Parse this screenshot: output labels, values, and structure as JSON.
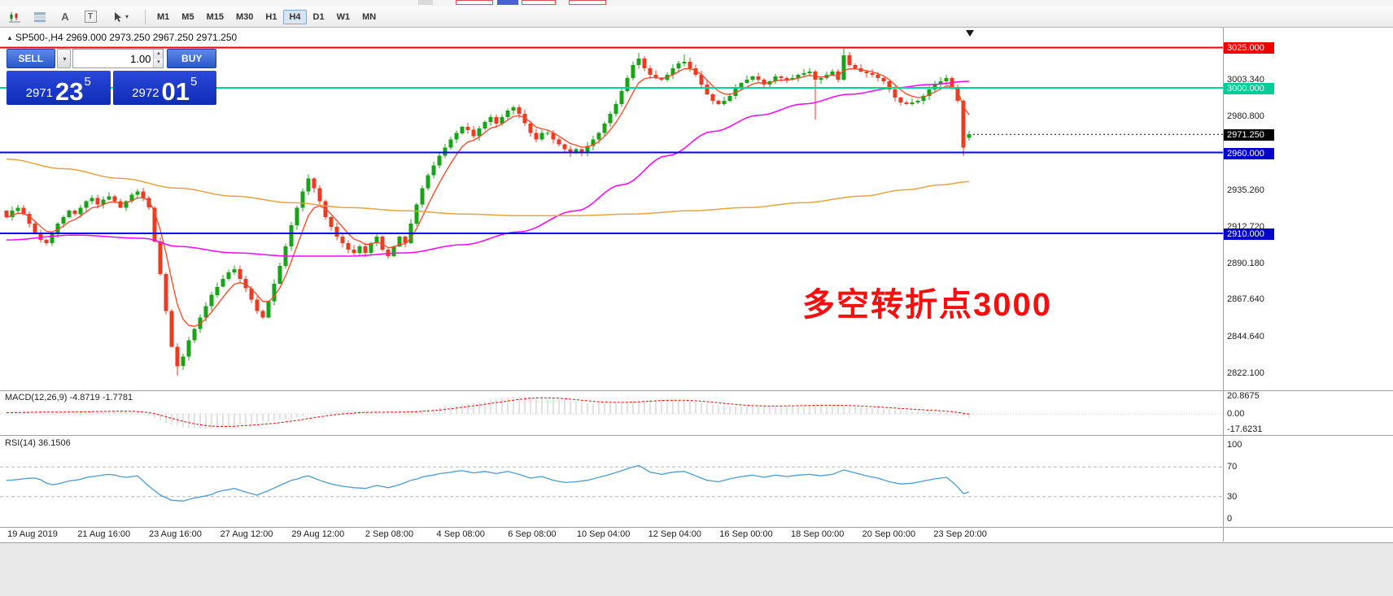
{
  "toolbar": {
    "icon_tools": [
      {
        "name": "charts-icon"
      },
      {
        "name": "tile-windows-icon"
      },
      {
        "name": "label-tool-icon",
        "glyph": "A"
      },
      {
        "name": "text-tool-icon",
        "glyph": "T"
      },
      {
        "name": "cursor-tool-icon"
      }
    ],
    "timeframes": [
      "M1",
      "M5",
      "M15",
      "M30",
      "H1",
      "H4",
      "D1",
      "W1",
      "MN"
    ],
    "active_timeframe": "H4"
  },
  "trade_panel": {
    "sell_label": "SELL",
    "buy_label": "BUY",
    "volume": "1.00",
    "bid": {
      "prefix": "2971",
      "big": "23",
      "sup": "5"
    },
    "ask": {
      "prefix": "2972",
      "big": "01",
      "sup": "5"
    }
  },
  "chart": {
    "symbol_info": "SP500-,H4 2969.000 2973.250 2967.250 2971.250",
    "annotation": "多空转折点3000"
  },
  "chart_data": {
    "type": "candlestick",
    "symbol": "SP500-",
    "timeframe": "H4",
    "ohlc": {
      "open": 2969.0,
      "high": 2973.25,
      "low": 2967.25,
      "close": 2971.25
    },
    "current_price": 2971.25,
    "x_axis": [
      "19 Aug 2019",
      "21 Aug 16:00",
      "23 Aug 16:00",
      "27 Aug 12:00",
      "29 Aug 12:00",
      "2 Sep 08:00",
      "4 Sep 08:00",
      "6 Sep 08:00",
      "10 Sep 04:00",
      "12 Sep 04:00",
      "16 Sep 00:00",
      "18 Sep 00:00",
      "20 Sep 00:00",
      "23 Sep 20:00"
    ],
    "y_axis_labels": [
      "3003.340",
      "2980.800",
      "2935.260",
      "2912.720",
      "2890.180",
      "2867.640",
      "2844.640",
      "2822.100"
    ],
    "price_badges": [
      {
        "label": "3025.000",
        "price": 3025.0,
        "bg": "#ee0000"
      },
      {
        "label": "3000.000",
        "price": 3000.0,
        "bg": "#00cc99"
      },
      {
        "label": "2971.250",
        "price": 2971.25,
        "bg": "#000000"
      },
      {
        "label": "2960.000",
        "price": 2960.0,
        "bg": "#0000cc"
      },
      {
        "label": "2910.000",
        "price": 2910.0,
        "bg": "#0000cc"
      }
    ],
    "hlines": [
      {
        "price": 3025.0,
        "color": "#ff0000"
      },
      {
        "price": 3000.0,
        "color": "#00d59a"
      },
      {
        "price": 2960.0,
        "color": "#0000ff"
      },
      {
        "price": 2910.0,
        "color": "#0000ff"
      }
    ],
    "closes": [
      2920,
      2924,
      2926,
      2922,
      2916,
      2910,
      2906,
      2904,
      2910,
      2916,
      2920,
      2924,
      2922,
      2926,
      2930,
      2932,
      2928,
      2931,
      2933,
      2930,
      2926,
      2930,
      2934,
      2936,
      2932,
      2926,
      2905,
      2885,
      2862,
      2840,
      2828,
      2834,
      2844,
      2851,
      2858,
      2865,
      2872,
      2877,
      2882,
      2886,
      2888,
      2882,
      2876,
      2869,
      2862,
      2858,
      2868,
      2879,
      2890,
      2902,
      2915,
      2926,
      2936,
      2944,
      2938,
      2930,
      2920,
      2914,
      2908,
      2904,
      2900,
      2898,
      2902,
      2898,
      2904,
      2908,
      2900,
      2896,
      2902,
      2908,
      2904,
      2916,
      2928,
      2938,
      2946,
      2952,
      2958,
      2963,
      2968,
      2972,
      2976,
      2974,
      2970,
      2975,
      2979,
      2982,
      2978,
      2982,
      2986,
      2988,
      2984,
      2978,
      2972,
      2968,
      2972,
      2972,
      2968,
      2965,
      2962,
      2960,
      2962,
      2960,
      2964,
      2968,
      2972,
      2978,
      2984,
      2990,
      2998,
      3006,
      3014,
      3018,
      3012,
      3008,
      3006,
      3005,
      3008,
      3012,
      3015,
      3016,
      3012,
      3008,
      3002,
      2996,
      2992,
      2990,
      2992,
      2995,
      3000,
      3003,
      3005,
      3007,
      3005,
      3002,
      3004,
      3007,
      3006,
      3005,
      3006,
      3008,
      3009,
      3010,
      3005,
      3006,
      3008,
      3010,
      3005,
      3020,
      3014,
      3012,
      3010,
      3009,
      3008,
      3006,
      3004,
      2999,
      2994,
      2991,
      2990,
      2991,
      2992,
      2995,
      2999,
      3002,
      3004,
      3006,
      3000,
      2992,
      2963,
      2971.25
    ],
    "wick_overrides": {
      "30": {
        "l": 2822.1
      },
      "53": {
        "h": 2946.5
      },
      "111": {
        "h": 3021.5
      },
      "119": {
        "h": 3020.5
      },
      "142": {
        "l": 2980.5
      },
      "147": {
        "h": 3025.0
      },
      "168": {
        "l": 2957.8
      },
      "169": {
        "o": 2969.0,
        "h": 2973.25,
        "l": 2967.25
      }
    },
    "ma_fast_period": 6,
    "ma_mid_anchors": [
      [
        0,
        2906
      ],
      [
        12,
        2909
      ],
      [
        24,
        2907
      ],
      [
        30,
        2902
      ],
      [
        40,
        2898
      ],
      [
        50,
        2896
      ],
      [
        60,
        2896
      ],
      [
        70,
        2898
      ],
      [
        80,
        2903
      ],
      [
        90,
        2911
      ],
      [
        100,
        2924
      ],
      [
        108,
        2940
      ],
      [
        116,
        2958
      ],
      [
        124,
        2973
      ],
      [
        132,
        2983
      ],
      [
        140,
        2990
      ],
      [
        148,
        2996
      ],
      [
        156,
        3000
      ],
      [
        162,
        3002
      ],
      [
        169,
        3004
      ]
    ],
    "ma_slow_anchors": [
      [
        0,
        2956
      ],
      [
        10,
        2950
      ],
      [
        20,
        2944
      ],
      [
        30,
        2938
      ],
      [
        40,
        2933
      ],
      [
        50,
        2929
      ],
      [
        60,
        2926
      ],
      [
        70,
        2924
      ],
      [
        80,
        2922
      ],
      [
        90,
        2921
      ],
      [
        100,
        2921
      ],
      [
        110,
        2922
      ],
      [
        120,
        2924
      ],
      [
        130,
        2926
      ],
      [
        140,
        2929
      ],
      [
        150,
        2933
      ],
      [
        158,
        2937
      ],
      [
        164,
        2940
      ],
      [
        169,
        2942
      ]
    ],
    "macd": {
      "label": "MACD(12,26,9) -4.8719 -1.7781",
      "scale": {
        "max": "20.8675",
        "zero": "0.00",
        "min": "-17.6231"
      },
      "signal_period": 9,
      "anchors": [
        [
          0,
          1.5
        ],
        [
          5,
          2.5
        ],
        [
          10,
          2
        ],
        [
          15,
          3.2
        ],
        [
          20,
          3.5
        ],
        [
          23,
          2
        ],
        [
          25,
          -2
        ],
        [
          27,
          -8
        ],
        [
          29,
          -13
        ],
        [
          32,
          -16.5
        ],
        [
          35,
          -17.6
        ],
        [
          38,
          -15
        ],
        [
          42,
          -12
        ],
        [
          46,
          -9.5
        ],
        [
          50,
          -5
        ],
        [
          54,
          0
        ],
        [
          58,
          2.5
        ],
        [
          62,
          3
        ],
        [
          66,
          2
        ],
        [
          70,
          2.5
        ],
        [
          74,
          5
        ],
        [
          78,
          9
        ],
        [
          82,
          13
        ],
        [
          86,
          17
        ],
        [
          89,
          19.5
        ],
        [
          91,
          20.9
        ],
        [
          94,
          19.5
        ],
        [
          97,
          17
        ],
        [
          100,
          14
        ],
        [
          103,
          12
        ],
        [
          106,
          12.5
        ],
        [
          109,
          14
        ],
        [
          112,
          16
        ],
        [
          115,
          17
        ],
        [
          118,
          16
        ],
        [
          121,
          14
        ],
        [
          124,
          11
        ],
        [
          127,
          9
        ],
        [
          130,
          8
        ],
        [
          133,
          8.5
        ],
        [
          136,
          9.5
        ],
        [
          139,
          10
        ],
        [
          142,
          10.5
        ],
        [
          145,
          10
        ],
        [
          148,
          9
        ],
        [
          151,
          7.5
        ],
        [
          154,
          6
        ],
        [
          157,
          4.5
        ],
        [
          160,
          3.5
        ],
        [
          163,
          2.5
        ],
        [
          165,
          1.5
        ],
        [
          167,
          -1.5
        ],
        [
          169,
          -4.87
        ]
      ]
    },
    "rsi": {
      "label": "RSI(14) 36.1506",
      "scale": [
        "100",
        "70",
        "30",
        "0"
      ],
      "levels": [
        70,
        30
      ],
      "anchors": [
        [
          0,
          52
        ],
        [
          5,
          55
        ],
        [
          8,
          46
        ],
        [
          12,
          52
        ],
        [
          15,
          57
        ],
        [
          18,
          60
        ],
        [
          21,
          56
        ],
        [
          23,
          58
        ],
        [
          25,
          44
        ],
        [
          27,
          32
        ],
        [
          29,
          25
        ],
        [
          31,
          24
        ],
        [
          33,
          28
        ],
        [
          35,
          31
        ],
        [
          38,
          38
        ],
        [
          40,
          41
        ],
        [
          42,
          36
        ],
        [
          44,
          32
        ],
        [
          46,
          38
        ],
        [
          48,
          45
        ],
        [
          50,
          52
        ],
        [
          53,
          58
        ],
        [
          55,
          52
        ],
        [
          57,
          47
        ],
        [
          59,
          44
        ],
        [
          61,
          42
        ],
        [
          63,
          41
        ],
        [
          65,
          45
        ],
        [
          67,
          42
        ],
        [
          69,
          46
        ],
        [
          71,
          52
        ],
        [
          74,
          58
        ],
        [
          77,
          62
        ],
        [
          80,
          65
        ],
        [
          82,
          62
        ],
        [
          84,
          64
        ],
        [
          86,
          61
        ],
        [
          88,
          64
        ],
        [
          90,
          60
        ],
        [
          92,
          55
        ],
        [
          94,
          57
        ],
        [
          96,
          52
        ],
        [
          98,
          49
        ],
        [
          100,
          50
        ],
        [
          102,
          52
        ],
        [
          104,
          56
        ],
        [
          106,
          60
        ],
        [
          108,
          65
        ],
        [
          110,
          70
        ],
        [
          111,
          72
        ],
        [
          113,
          63
        ],
        [
          115,
          60
        ],
        [
          117,
          63
        ],
        [
          119,
          64
        ],
        [
          121,
          58
        ],
        [
          123,
          52
        ],
        [
          125,
          50
        ],
        [
          127,
          54
        ],
        [
          129,
          57
        ],
        [
          131,
          59
        ],
        [
          133,
          56
        ],
        [
          135,
          59
        ],
        [
          137,
          57
        ],
        [
          139,
          59
        ],
        [
          141,
          60
        ],
        [
          143,
          58
        ],
        [
          145,
          60
        ],
        [
          147,
          66
        ],
        [
          149,
          62
        ],
        [
          151,
          58
        ],
        [
          153,
          55
        ],
        [
          155,
          50
        ],
        [
          157,
          47
        ],
        [
          159,
          48
        ],
        [
          161,
          51
        ],
        [
          163,
          54
        ],
        [
          165,
          56
        ],
        [
          166,
          50
        ],
        [
          167,
          43
        ],
        [
          168,
          34
        ],
        [
          169,
          36.15
        ]
      ]
    },
    "colors": {
      "up": "#18a318",
      "down": "#ea3b23",
      "ma_fast": "#ff4422",
      "ma_mid": "#ff00ff",
      "ma_slow": "#e8a33c",
      "macd_hist": "#c4c4c4",
      "macd_signal": "#ff0000",
      "rsi": "#4b9cd3"
    }
  }
}
